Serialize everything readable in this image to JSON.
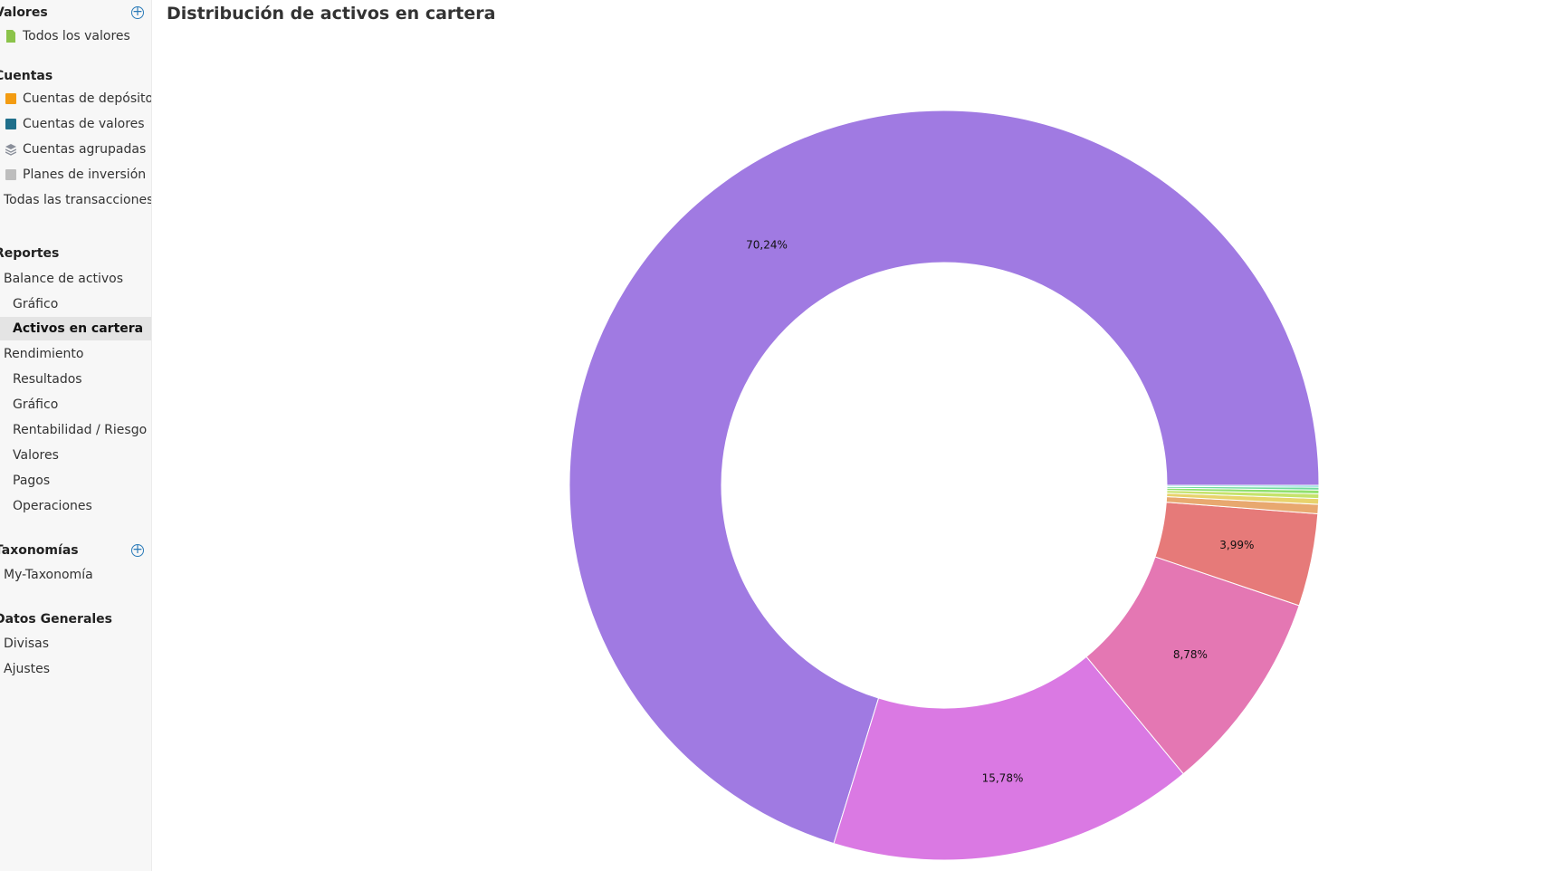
{
  "sidebar": {
    "valores": {
      "title": "Valores",
      "items": [
        {
          "label": "Todos los valores",
          "icon": "security-file-icon",
          "color": "#8bc34a"
        }
      ]
    },
    "cuentas": {
      "title": "Cuentas",
      "items": [
        {
          "label": "Cuentas de depósito",
          "icon": "deposit-account-icon",
          "color": "#f39c12"
        },
        {
          "label": "Cuentas de valores",
          "icon": "securities-account-icon",
          "color": "#1f6f8b"
        },
        {
          "label": "Cuentas agrupadas",
          "icon": "layers-icon",
          "color": "#8a8f9a"
        },
        {
          "label": "Planes de inversión",
          "icon": "investment-plan-icon",
          "color": "#bdbdbd"
        },
        {
          "label": "Todas las transacciones"
        }
      ]
    },
    "reportes": {
      "title": "Reportes",
      "items": [
        {
          "label": "Balance de activos"
        },
        {
          "label": "Gráfico"
        },
        {
          "label": "Activos en cartera"
        },
        {
          "label": "Rendimiento"
        },
        {
          "label": "Resultados"
        },
        {
          "label": "Gráfico"
        },
        {
          "label": "Rentabilidad / Riesgo"
        },
        {
          "label": "Valores"
        },
        {
          "label": "Pagos"
        },
        {
          "label": "Operaciones"
        }
      ]
    },
    "taxonomias": {
      "title": "Taxonomías",
      "items": [
        {
          "label": "My-Taxonomía"
        }
      ]
    },
    "datos": {
      "title": "Datos Generales",
      "items": [
        {
          "label": "Divisas"
        },
        {
          "label": "Ajustes"
        }
      ]
    },
    "add_symbol": "+"
  },
  "main": {
    "title": "Distribución de activos en cartera"
  },
  "chart_data": {
    "type": "pie",
    "donut": true,
    "values": [
      70.24,
      15.78,
      8.78,
      3.99,
      0.4,
      0.25,
      0.2,
      0.16,
      0.12,
      0.08
    ],
    "labels": [
      "70,24%",
      "15,78%",
      "8,78%",
      "3,99%",
      "",
      "",
      "",
      "",
      "",
      ""
    ],
    "colors": [
      "#a07ae2",
      "#da79e3",
      "#e477b3",
      "#e67a79",
      "#e8a86f",
      "#e8d36c",
      "#c5e36c",
      "#8fe06d",
      "#6fdba0",
      "#6fd3d6"
    ],
    "start": "3 o'clock, counter-clockwise"
  }
}
